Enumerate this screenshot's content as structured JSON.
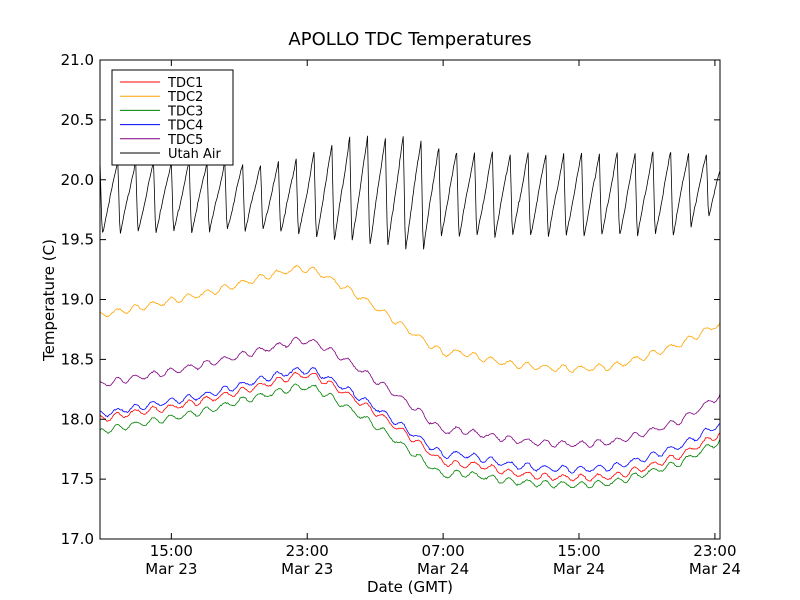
{
  "chart_data": {
    "type": "line",
    "title": "APOLLO TDC Temperatures",
    "xlabel": "Date (GMT)",
    "ylabel": "Temperature (C)",
    "x_unit": "hours since Mar 23 00:00 GMT",
    "xlim": [
      10.8,
      23.0,
      47.3
    ],
    "x_range": [
      10.8,
      47.3
    ],
    "ylim": [
      17.0,
      21.0
    ],
    "y_ticks": [
      "17.0",
      "17.5",
      "18.0",
      "18.5",
      "19.0",
      "19.5",
      "20.0",
      "20.5",
      "21.0"
    ],
    "x_ticks": [
      {
        "x": 15,
        "time": "15:00",
        "date": "Mar 23"
      },
      {
        "x": 23,
        "time": "23:00",
        "date": "Mar 23"
      },
      {
        "x": 31,
        "time": "07:00",
        "date": "Mar 24"
      },
      {
        "x": 39,
        "time": "15:00",
        "date": "Mar 24"
      },
      {
        "x": 47,
        "time": "23:00",
        "date": "Mar 24"
      }
    ],
    "legend": {
      "placement": "upper-left"
    },
    "series": [
      {
        "name": "TDC1",
        "color": "#ff0000",
        "points": [
          [
            10.8,
            18.0
          ],
          [
            13,
            18.06
          ],
          [
            15,
            18.1
          ],
          [
            17,
            18.16
          ],
          [
            19,
            18.23
          ],
          [
            21,
            18.31
          ],
          [
            22.5,
            18.37
          ],
          [
            23.5,
            18.36
          ],
          [
            25,
            18.24
          ],
          [
            27,
            18.06
          ],
          [
            29,
            17.86
          ],
          [
            31,
            17.64
          ],
          [
            32,
            17.62
          ],
          [
            33,
            17.62
          ],
          [
            35,
            17.55
          ],
          [
            37,
            17.52
          ],
          [
            39,
            17.51
          ],
          [
            41,
            17.52
          ],
          [
            43,
            17.6
          ],
          [
            45,
            17.7
          ],
          [
            47.3,
            17.88
          ]
        ]
      },
      {
        "name": "TDC2",
        "color": "#ffa500",
        "points": [
          [
            10.8,
            18.87
          ],
          [
            13,
            18.93
          ],
          [
            15,
            18.99
          ],
          [
            17,
            19.05
          ],
          [
            19,
            19.13
          ],
          [
            21,
            19.21
          ],
          [
            22.5,
            19.26
          ],
          [
            23.5,
            19.24
          ],
          [
            25,
            19.12
          ],
          [
            27,
            18.94
          ],
          [
            29,
            18.74
          ],
          [
            31,
            18.55
          ],
          [
            32,
            18.56
          ],
          [
            33,
            18.52
          ],
          [
            35,
            18.46
          ],
          [
            37,
            18.43
          ],
          [
            39,
            18.42
          ],
          [
            41,
            18.44
          ],
          [
            43,
            18.53
          ],
          [
            45,
            18.63
          ],
          [
            47.3,
            18.8
          ]
        ]
      },
      {
        "name": "TDC3",
        "color": "#008000",
        "points": [
          [
            10.8,
            17.9
          ],
          [
            13,
            17.96
          ],
          [
            15,
            18.01
          ],
          [
            17,
            18.07
          ],
          [
            19,
            18.15
          ],
          [
            21,
            18.22
          ],
          [
            22.5,
            18.27
          ],
          [
            23.5,
            18.26
          ],
          [
            25,
            18.13
          ],
          [
            27,
            17.95
          ],
          [
            29,
            17.74
          ],
          [
            31,
            17.53
          ],
          [
            32,
            17.55
          ],
          [
            33,
            17.53
          ],
          [
            35,
            17.48
          ],
          [
            37,
            17.46
          ],
          [
            39,
            17.45
          ],
          [
            41,
            17.47
          ],
          [
            43,
            17.55
          ],
          [
            45,
            17.64
          ],
          [
            47.3,
            17.82
          ]
        ]
      },
      {
        "name": "TDC4",
        "color": "#0000ff",
        "points": [
          [
            10.8,
            18.04
          ],
          [
            13,
            18.1
          ],
          [
            15,
            18.15
          ],
          [
            17,
            18.2
          ],
          [
            19,
            18.28
          ],
          [
            21,
            18.36
          ],
          [
            22.5,
            18.41
          ],
          [
            23.5,
            18.4
          ],
          [
            25,
            18.28
          ],
          [
            27,
            18.1
          ],
          [
            29,
            17.9
          ],
          [
            31,
            17.7
          ],
          [
            32,
            17.71
          ],
          [
            33,
            17.68
          ],
          [
            35,
            17.62
          ],
          [
            37,
            17.59
          ],
          [
            39,
            17.58
          ],
          [
            41,
            17.6
          ],
          [
            43,
            17.68
          ],
          [
            45,
            17.78
          ],
          [
            47.3,
            17.96
          ]
        ]
      },
      {
        "name": "TDC5",
        "color": "#800080",
        "points": [
          [
            10.8,
            18.29
          ],
          [
            13,
            18.35
          ],
          [
            15,
            18.4
          ],
          [
            17,
            18.46
          ],
          [
            19,
            18.53
          ],
          [
            21,
            18.6
          ],
          [
            22.5,
            18.66
          ],
          [
            23.5,
            18.64
          ],
          [
            25,
            18.52
          ],
          [
            27,
            18.33
          ],
          [
            29,
            18.13
          ],
          [
            31,
            17.9
          ],
          [
            32,
            17.91
          ],
          [
            33,
            17.88
          ],
          [
            35,
            17.83
          ],
          [
            37,
            17.8
          ],
          [
            39,
            17.79
          ],
          [
            41,
            17.81
          ],
          [
            43,
            17.89
          ],
          [
            45,
            17.99
          ],
          [
            47.3,
            18.2
          ]
        ]
      },
      {
        "name": "Utah Air",
        "color": "#000000",
        "cycle_hours": 1.05,
        "envelope": [
          [
            10.8,
            19.48,
            20.16
          ],
          [
            16,
            19.5,
            20.15
          ],
          [
            21,
            19.52,
            20.13
          ],
          [
            23,
            19.45,
            20.2
          ],
          [
            25,
            19.4,
            20.34
          ],
          [
            27,
            19.36,
            20.36
          ],
          [
            29,
            19.32,
            20.36
          ],
          [
            30,
            19.32,
            20.32
          ],
          [
            31,
            19.45,
            20.24
          ],
          [
            35,
            19.45,
            20.22
          ],
          [
            40,
            19.45,
            20.22
          ],
          [
            45,
            19.46,
            20.24
          ],
          [
            47.3,
            19.72,
            20.18
          ]
        ]
      }
    ]
  }
}
